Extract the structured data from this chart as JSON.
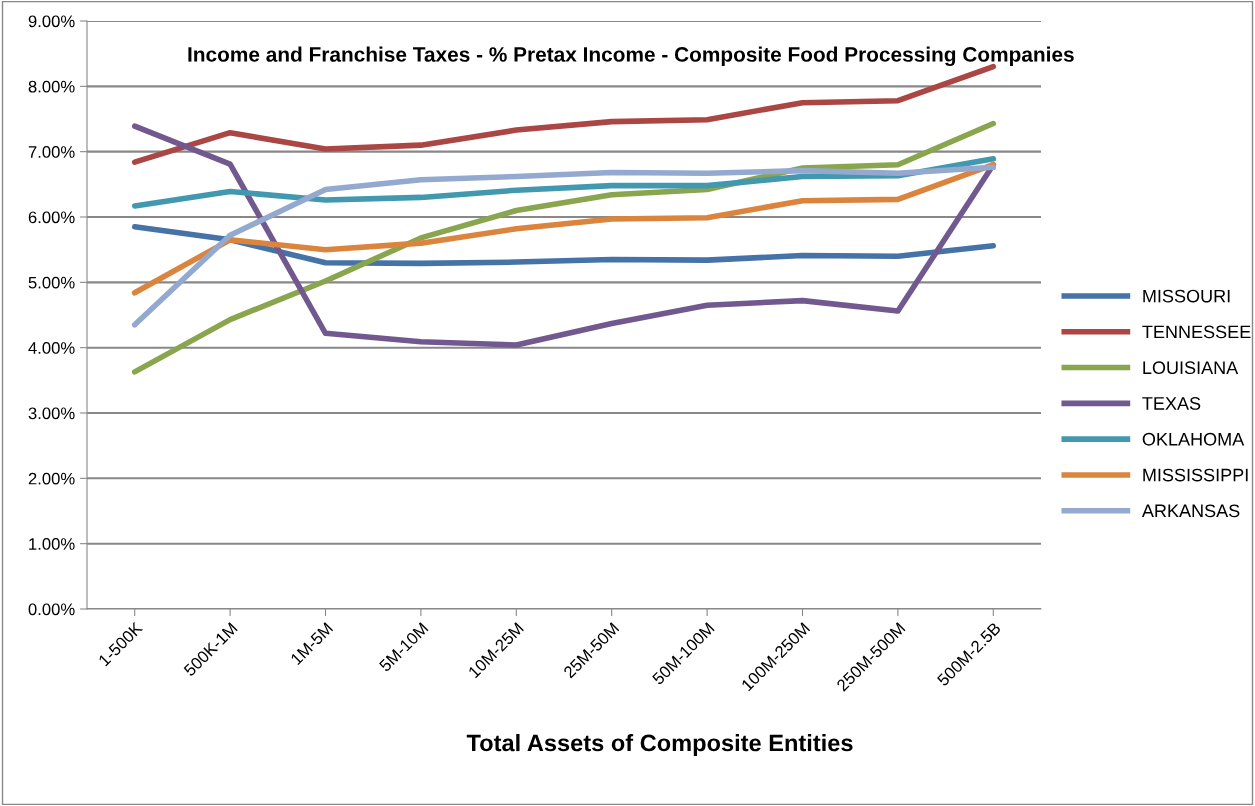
{
  "chart_data": {
    "type": "line",
    "title": "Income and Franchise Taxes - % Pretax Income - Composite Food Processing Companies",
    "xlabel": "Total Assets of Composite Entities",
    "categories": [
      "1-500K",
      "500K-1M",
      "1M-5M",
      "5M-10M",
      "10M-25M",
      "25M-50M",
      "50M-100M",
      "100M-250M",
      "250M-500M",
      "500M-2.5B"
    ],
    "series": [
      {
        "name": "MISSOURI",
        "color": "#4572a7",
        "values": [
          5.85,
          5.65,
          5.3,
          5.29,
          5.31,
          5.35,
          5.34,
          5.41,
          5.4,
          5.56
        ]
      },
      {
        "name": "TENNESSEE",
        "color": "#aa4643",
        "values": [
          6.84,
          7.29,
          7.04,
          7.1,
          7.33,
          7.46,
          7.49,
          7.75,
          7.78,
          8.3
        ]
      },
      {
        "name": "LOUISIANA",
        "color": "#89a54e",
        "values": [
          3.63,
          4.43,
          5.02,
          5.68,
          6.1,
          6.34,
          6.42,
          6.75,
          6.8,
          7.43
        ]
      },
      {
        "name": "TEXAS",
        "color": "#71588f",
        "values": [
          7.39,
          6.81,
          4.22,
          4.09,
          4.04,
          4.37,
          4.65,
          4.72,
          4.56,
          6.8
        ]
      },
      {
        "name": "OKLAHOMA",
        "color": "#4198af",
        "values": [
          6.17,
          6.39,
          6.26,
          6.3,
          6.41,
          6.48,
          6.48,
          6.62,
          6.63,
          6.89
        ]
      },
      {
        "name": "MISSISSIPPI",
        "color": "#db843d",
        "values": [
          4.84,
          5.65,
          5.5,
          5.6,
          5.82,
          5.97,
          5.99,
          6.25,
          6.27,
          6.8
        ]
      },
      {
        "name": "ARKANSAS",
        "color": "#93a9cf",
        "values": [
          4.35,
          5.72,
          6.42,
          6.57,
          6.62,
          6.68,
          6.67,
          6.71,
          6.67,
          6.76
        ]
      }
    ],
    "ylim": [
      0,
      9
    ],
    "yticks": [
      {
        "value": 0,
        "label": "0.00%"
      },
      {
        "value": 1,
        "label": "1.00%"
      },
      {
        "value": 2,
        "label": "2.00%"
      },
      {
        "value": 3,
        "label": "3.00%"
      },
      {
        "value": 4,
        "label": "4.00%"
      },
      {
        "value": 5,
        "label": "5.00%"
      },
      {
        "value": 6,
        "label": "6.00%"
      },
      {
        "value": 7,
        "label": "7.00%"
      },
      {
        "value": 8,
        "label": "8.00%"
      },
      {
        "value": 9,
        "label": "9.00%"
      }
    ],
    "grid": "y",
    "legend": "right",
    "marker": "none",
    "line_style": "solid"
  }
}
